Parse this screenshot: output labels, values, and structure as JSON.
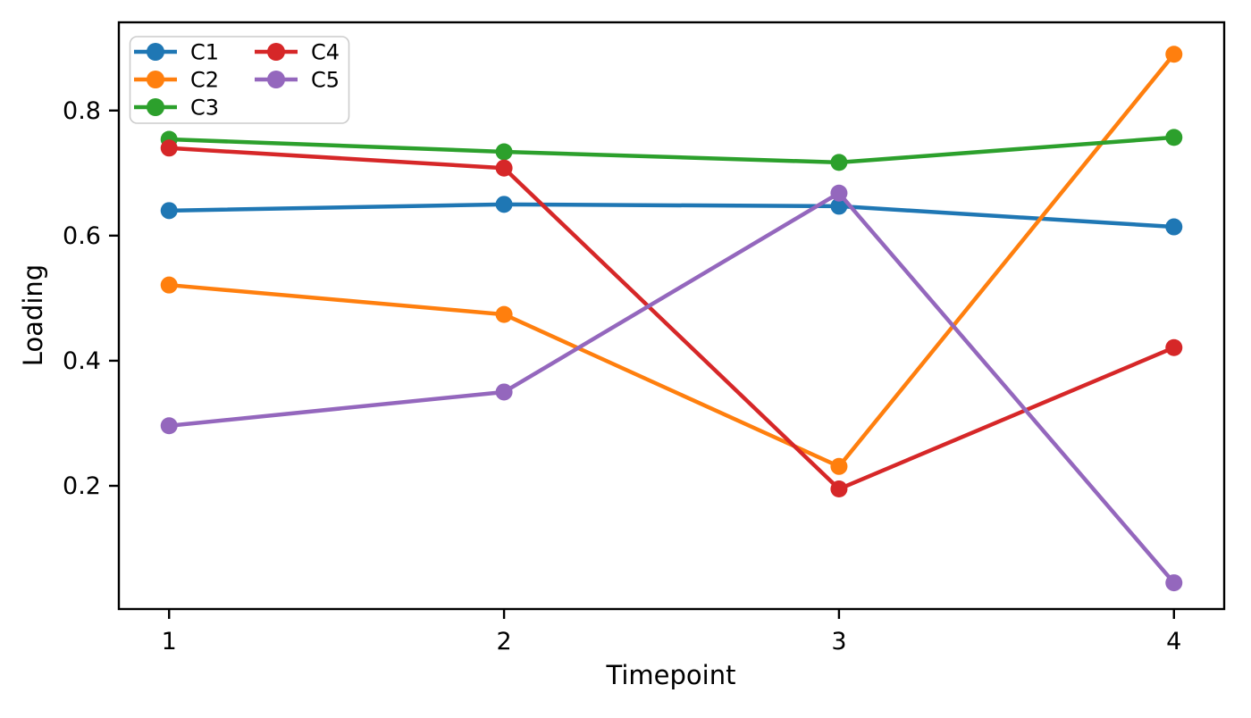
{
  "chart_data": {
    "type": "line",
    "title": "",
    "xlabel": "Timepoint",
    "ylabel": "Loading",
    "x": [
      1,
      2,
      3,
      4
    ],
    "xticks": [
      1,
      2,
      3,
      4
    ],
    "yticks": [
      0.2,
      0.4,
      0.6,
      0.8
    ],
    "xlim": [
      0.85,
      4.15
    ],
    "ylim": [
      0.003,
      0.941
    ],
    "grid": false,
    "legend_position": "upper-left",
    "legend_columns": 2,
    "legend_column_fill": [
      [
        "C1",
        "C2",
        "C3"
      ],
      [
        "C4",
        "C5"
      ]
    ],
    "marker": "circle",
    "series": [
      {
        "name": "C1",
        "color": "#1f77b4",
        "values": [
          0.64,
          0.65,
          0.647,
          0.614
        ]
      },
      {
        "name": "C2",
        "color": "#ff7f0e",
        "values": [
          0.521,
          0.474,
          0.231,
          0.89
        ]
      },
      {
        "name": "C3",
        "color": "#2ca02c",
        "values": [
          0.754,
          0.734,
          0.717,
          0.757
        ]
      },
      {
        "name": "C4",
        "color": "#d62728",
        "values": [
          0.74,
          0.708,
          0.195,
          0.421
        ]
      },
      {
        "name": "C5",
        "color": "#9467bd",
        "values": [
          0.296,
          0.35,
          0.668,
          0.045
        ]
      }
    ]
  },
  "style_colors": {
    "spine": "#000000",
    "tick": "#000000",
    "legend_border": "#cccccc",
    "legend_background": "#ffffff",
    "background": "#ffffff"
  }
}
